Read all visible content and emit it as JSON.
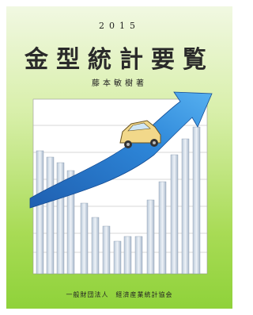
{
  "cover": {
    "year": "2015",
    "title": "金型統計要覧",
    "author": "藤本敏樹著",
    "publisher": "一般財団法人　経済産業統計協会"
  }
}
